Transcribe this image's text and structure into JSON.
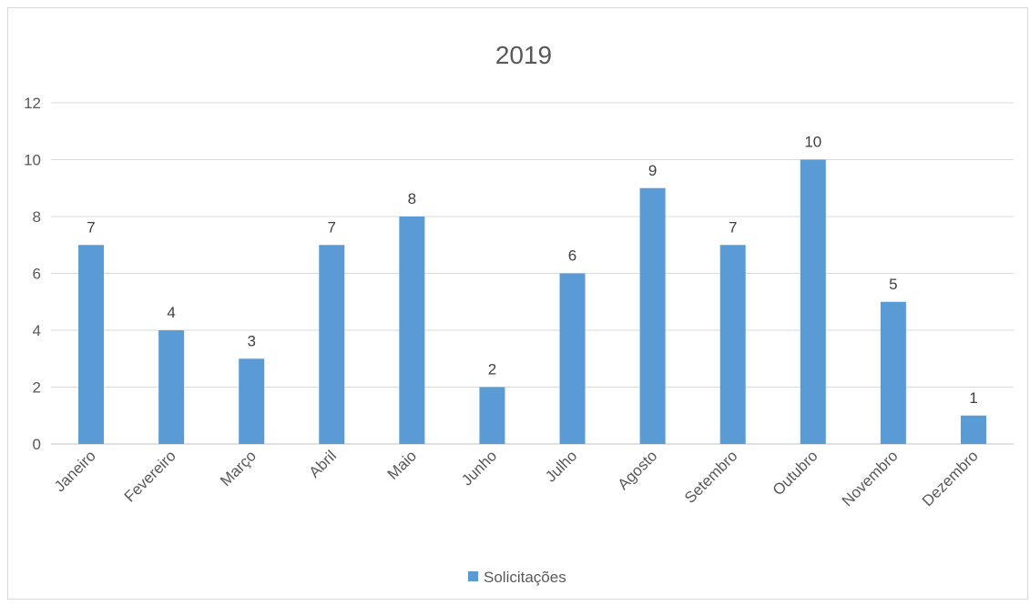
{
  "chart_data": {
    "type": "bar",
    "title": "2019",
    "categories": [
      "Janeiro",
      "Fevereiro",
      "Março",
      "Abril",
      "Maio",
      "Junho",
      "Julho",
      "Agosto",
      "Setembro",
      "Outubro",
      "Novembro",
      "Dezembro"
    ],
    "series": [
      {
        "name": "Solicitações",
        "values": [
          7,
          4,
          3,
          7,
          8,
          2,
          6,
          9,
          7,
          10,
          5,
          1
        ],
        "color": "#5b9bd5"
      }
    ],
    "ylim": [
      0,
      12
    ],
    "yticks": [
      0,
      2,
      4,
      6,
      8,
      10,
      12
    ],
    "grid": true,
    "legend": "bottom",
    "data_labels": true
  }
}
